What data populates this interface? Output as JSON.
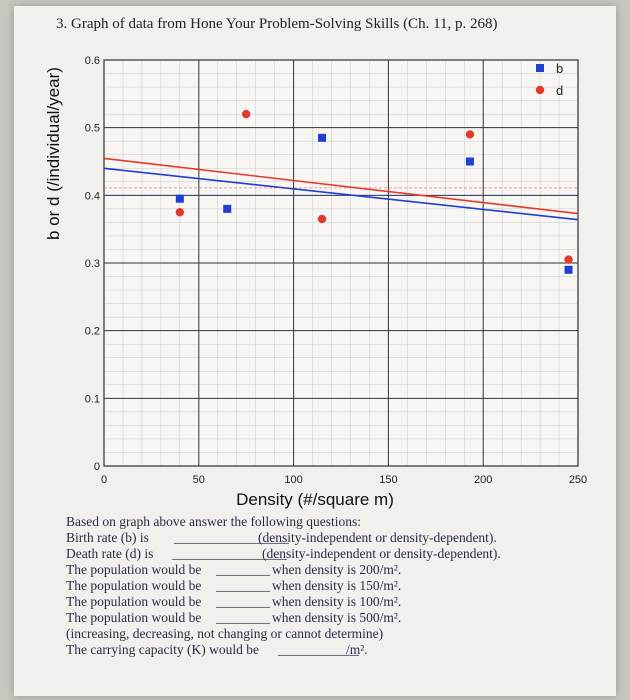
{
  "title": "3. Graph of data from Hone Your Problem-Solving Skills (Ch. 11, p. 268)",
  "chart_data": {
    "type": "scatter",
    "xlabel": "Density (#/square m)",
    "ylabel": "b or d (/individual/year)",
    "xlim": [
      0,
      250
    ],
    "ylim": [
      0,
      0.6
    ],
    "x_ticks": [
      "0",
      "50",
      "100",
      "150",
      "200",
      "250"
    ],
    "y_ticks": [
      "0",
      "0.1",
      "0.2",
      "0.3",
      "0.4",
      "0.5",
      "0.6"
    ],
    "grid": true,
    "legend_position": "top-right",
    "series": [
      {
        "name": "b",
        "color": "#1f3fd0",
        "marker": "square",
        "x": [
          40,
          65,
          115,
          193,
          245
        ],
        "y": [
          0.395,
          0.38,
          0.485,
          0.45,
          0.29
        ]
      },
      {
        "name": "d",
        "color": "#e23a2c",
        "marker": "circle",
        "x": [
          40,
          75,
          115,
          193,
          245
        ],
        "y": [
          0.375,
          0.52,
          0.365,
          0.49,
          0.305
        ]
      }
    ]
  },
  "questions": {
    "intro": "Based on graph above answer the following questions:",
    "birth": {
      "left": "Birth rate (b) is",
      "right": "(density-independent or density-dependent)."
    },
    "death": {
      "left": "Death rate (d) is",
      "right": "(density-independent or density-dependent)."
    },
    "pop1": {
      "left": "The population would be",
      "right": "when density is 200/m²."
    },
    "pop2": {
      "left": "The population would be",
      "right": "when density is 150/m²."
    },
    "pop3": {
      "left": "The population would be",
      "right": "when density is 100/m²."
    },
    "pop4": {
      "left": "The population would be",
      "right": "when density is 500/m²."
    },
    "choices": "(increasing, decreasing, not changing or cannot determine)",
    "capacity": {
      "left": "The carrying capacity (K) would be",
      "right": "/m²."
    }
  }
}
